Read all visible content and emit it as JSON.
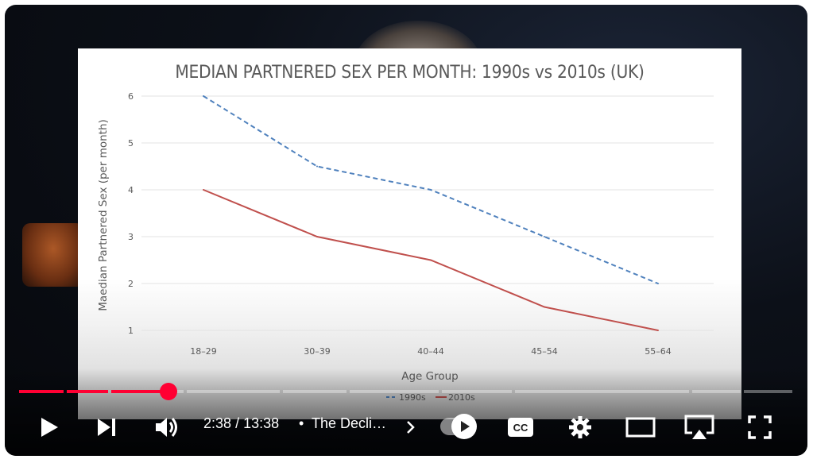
{
  "player": {
    "time_current": "2:38",
    "time_separator": "/",
    "time_total": "13:38",
    "chapter_title": "The Decli…",
    "progress": 0.193,
    "buffered": 0.2
  },
  "controls": {
    "play": "play-icon",
    "next": "next-icon",
    "volume": "volume-icon",
    "chapter_next": "chevron-right-icon",
    "autoplay": "autoplay-toggle",
    "captions": "captions-icon",
    "settings": "gear-icon",
    "theater": "theater-icon",
    "airplay": "airplay-icon",
    "fullscreen": "fullscreen-icon"
  },
  "colors": {
    "progress_played": "#ff0033",
    "series_1990s": "#4f81bd",
    "series_2010s": "#c0504d"
  },
  "chart_data": {
    "type": "line",
    "title": "MEDIAN PARTNERED SEX PER MONTH: 1990s vs 2010s (UK)",
    "xlabel": "Age Group",
    "ylabel": "Maedian Partnered Sex (per month)",
    "categories": [
      "18–29",
      "30–39",
      "40–44",
      "45–54",
      "55–64"
    ],
    "ylim": [
      1,
      6
    ],
    "yticks": [
      "1",
      "2",
      "3",
      "4",
      "5",
      "6"
    ],
    "grid": true,
    "legend": "bottom",
    "series": [
      {
        "name": "1990s",
        "values": [
          6,
          4.5,
          4,
          3,
          2
        ],
        "style": "dashed",
        "color": "#4f81bd"
      },
      {
        "name": "2010s",
        "values": [
          4,
          3,
          2.5,
          1.5,
          1
        ],
        "style": "solid",
        "color": "#c0504d"
      }
    ]
  }
}
